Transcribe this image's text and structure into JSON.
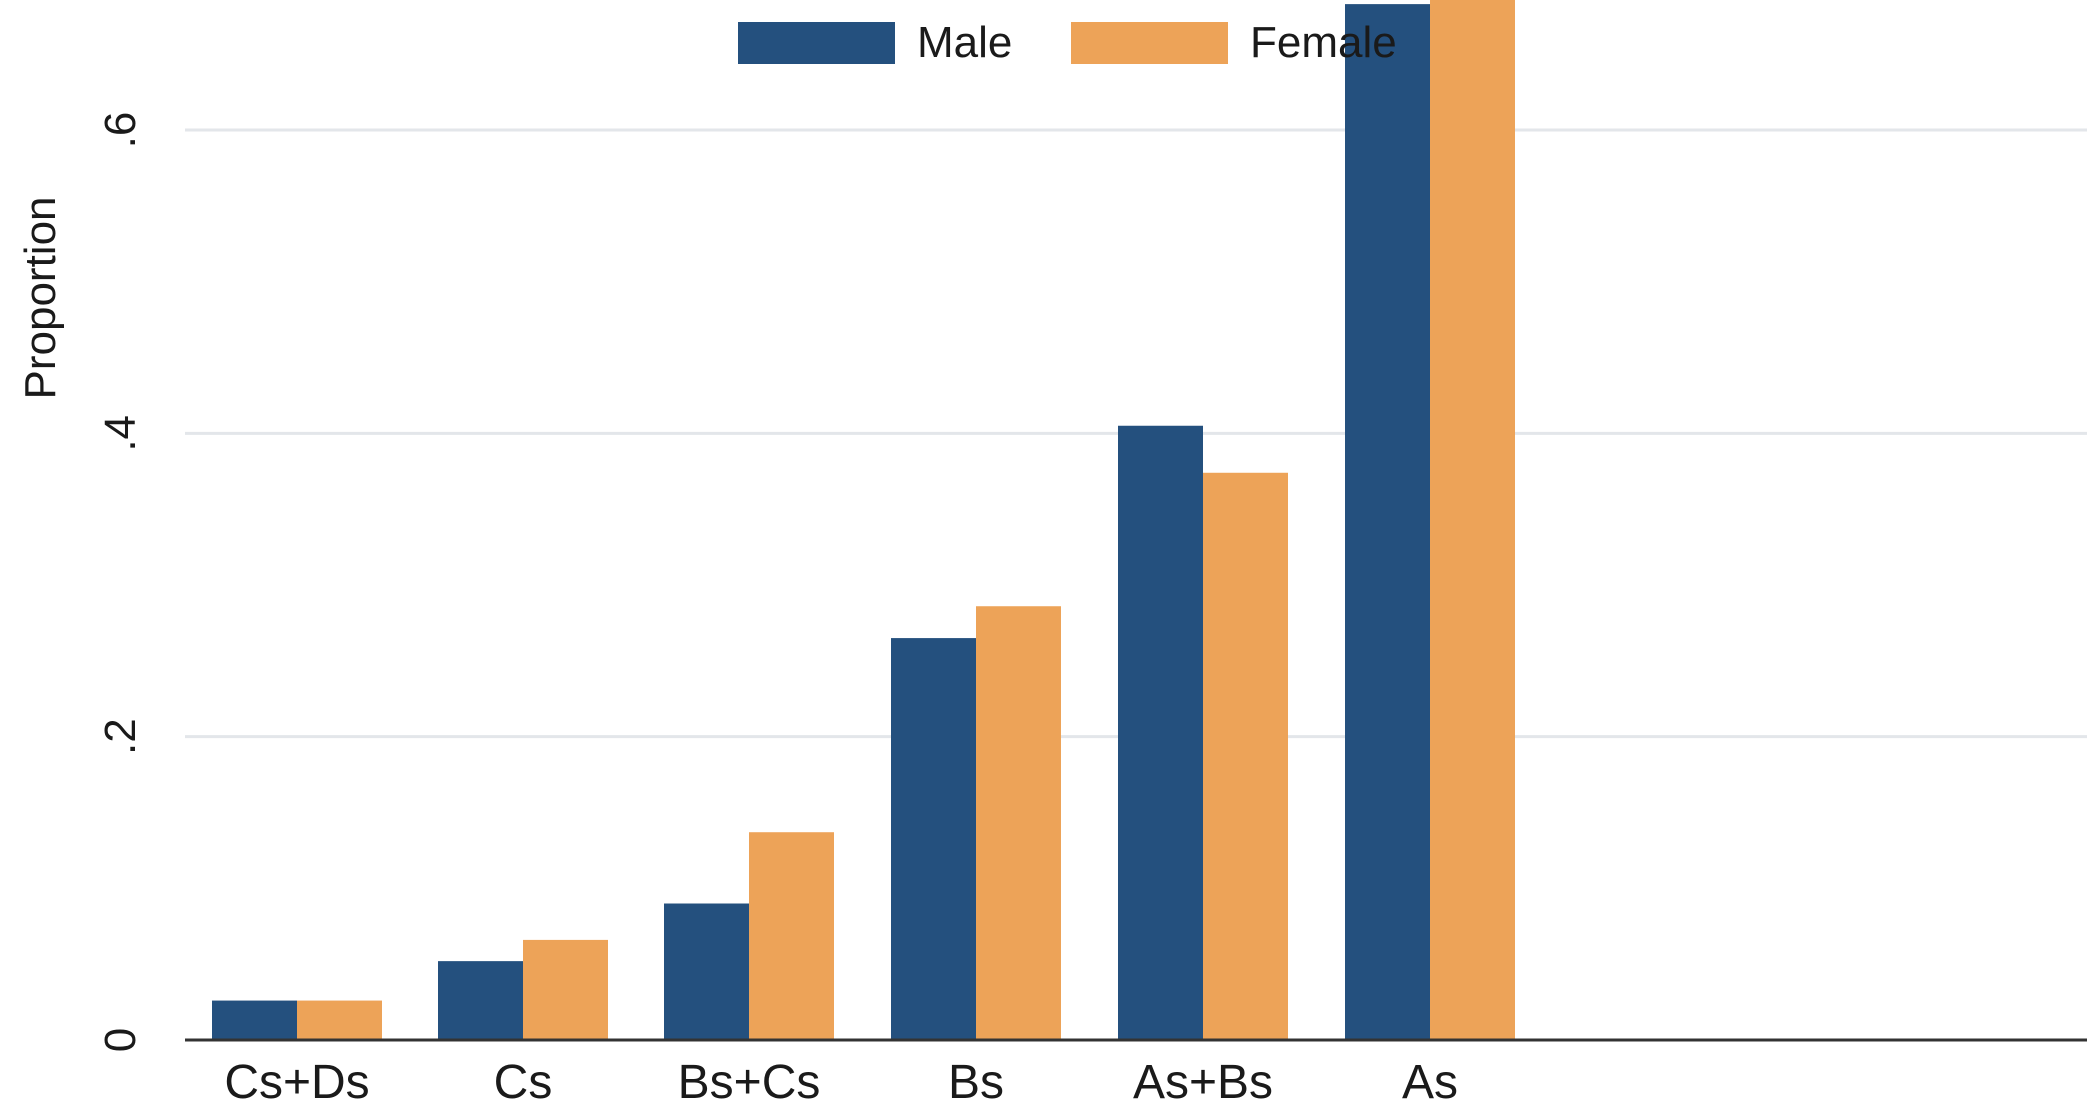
{
  "chart_data": {
    "type": "bar",
    "categories": [
      "Cs+Ds",
      "Cs",
      "Bs+Cs",
      "Bs",
      "As+Bs",
      "As"
    ],
    "series": [
      {
        "name": "Male",
        "color": "#24507e",
        "values": [
          0.026,
          0.052,
          0.09,
          0.265,
          0.405,
          0.683
        ]
      },
      {
        "name": "Female",
        "color": "#eda358",
        "values": [
          0.026,
          0.066,
          0.137,
          0.286,
          0.374,
          0.7
        ]
      }
    ],
    "yticks": [
      {
        "value": 0,
        "label": "0"
      },
      {
        "value": 0.2,
        "label": ".2"
      },
      {
        "value": 0.4,
        "label": ".4"
      },
      {
        "value": 0.6,
        "label": ".6"
      }
    ],
    "ylabel": "Proportion",
    "xlabel": "",
    "ylim": [
      0,
      0.6
    ],
    "grid": true,
    "legend_position": "top"
  }
}
